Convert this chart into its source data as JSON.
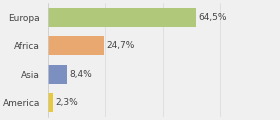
{
  "categories": [
    "America",
    "Asia",
    "Africa",
    "Europa"
  ],
  "values": [
    2.3,
    8.4,
    24.7,
    64.5
  ],
  "labels": [
    "2,3%",
    "8,4%",
    "24,7%",
    "64,5%"
  ],
  "bar_colors": [
    "#e8c840",
    "#7b8fc0",
    "#e8a870",
    "#b0c87a"
  ],
  "background_color": "#f0f0f0",
  "xlim": [
    0,
    100
  ],
  "bar_height": 0.65,
  "label_fontsize": 6.5,
  "tick_fontsize": 6.5,
  "figsize": [
    2.8,
    1.2
  ],
  "dpi": 100
}
